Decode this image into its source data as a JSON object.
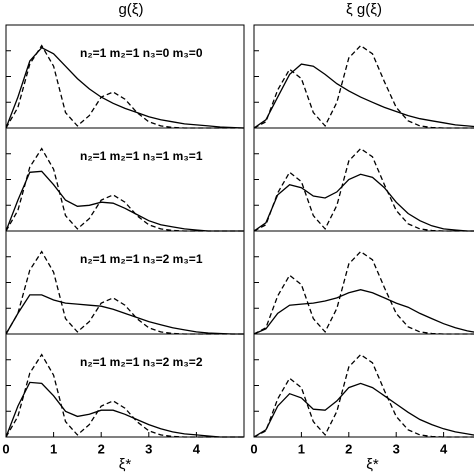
{
  "chart_data": [
    {
      "type": "line",
      "title": "g(ξ)",
      "annotation": "n₂=1 m₂=1 n₃=0 m₃=0",
      "x": [
        0,
        0.25,
        0.5,
        0.75,
        1,
        1.25,
        1.5,
        1.75,
        2,
        2.25,
        2.5,
        2.75,
        3,
        3.25,
        3.5,
        3.75,
        4,
        4.25,
        4.5,
        4.75,
        5
      ],
      "xlim": [
        0,
        5
      ],
      "ylim": [
        0,
        1
      ],
      "yticks": [
        {
          "value": 0.25,
          "label": null
        },
        {
          "value": 0.5,
          "label": null
        },
        {
          "value": 0.75,
          "label": null
        }
      ],
      "series": [
        {
          "color": "#000000",
          "style": "solid",
          "values": [
            0,
            0.3,
            0.65,
            0.78,
            0.72,
            0.6,
            0.48,
            0.38,
            0.3,
            0.24,
            0.19,
            0.15,
            0.11,
            0.08,
            0.06,
            0.04,
            0.03,
            0.02,
            0.01,
            0.005,
            0
          ]
        },
        {
          "color": "#000000",
          "style": "dashed",
          "values": [
            0,
            0.2,
            0.62,
            0.8,
            0.6,
            0.15,
            0.02,
            0.12,
            0.3,
            0.35,
            0.28,
            0.15,
            0.06,
            0.02,
            0.005,
            0,
            0,
            0,
            0,
            0,
            0
          ]
        }
      ]
    },
    {
      "type": "line",
      "title": "ξ g(ξ)",
      "x": [
        0,
        0.25,
        0.5,
        0.75,
        1,
        1.25,
        1.5,
        1.75,
        2,
        2.25,
        2.5,
        2.75,
        3,
        3.25,
        3.5,
        3.75,
        4,
        4.25,
        4.5,
        4.75,
        5
      ],
      "xlim": [
        0,
        5
      ],
      "ylim": [
        0,
        1
      ],
      "yticks": [
        {
          "value": 0.25,
          "label": null
        },
        {
          "value": 0.5,
          "label": null
        },
        {
          "value": 0.75,
          "label": null
        }
      ],
      "series": [
        {
          "color": "#000000",
          "style": "solid",
          "values": [
            0,
            0.08,
            0.3,
            0.52,
            0.62,
            0.6,
            0.52,
            0.43,
            0.36,
            0.3,
            0.25,
            0.2,
            0.16,
            0.12,
            0.09,
            0.07,
            0.05,
            0.03,
            0.02,
            0.01,
            0
          ]
        },
        {
          "color": "#000000",
          "style": "dashed",
          "values": [
            0,
            0.06,
            0.37,
            0.57,
            0.48,
            0.15,
            0.02,
            0.25,
            0.68,
            0.8,
            0.72,
            0.45,
            0.2,
            0.07,
            0.02,
            0.005,
            0,
            0,
            0,
            0,
            0
          ]
        }
      ]
    },
    {
      "type": "line",
      "annotation": "n₂=1 m₂=1 n₃=1 m₃=1",
      "x": [
        0,
        0.25,
        0.5,
        0.75,
        1,
        1.25,
        1.5,
        1.75,
        2,
        2.25,
        2.5,
        2.75,
        3,
        3.25,
        3.5,
        3.75,
        4,
        4.25,
        4.5,
        4.75,
        5
      ],
      "xlim": [
        0,
        5
      ],
      "ylim": [
        0,
        1
      ],
      "yticks": [
        {
          "value": 0.25,
          "label": null
        },
        {
          "value": 0.5,
          "label": null
        },
        {
          "value": 0.75,
          "label": null
        }
      ],
      "series": [
        {
          "color": "#000000",
          "style": "solid",
          "values": [
            0,
            0.3,
            0.57,
            0.58,
            0.45,
            0.3,
            0.24,
            0.25,
            0.28,
            0.27,
            0.22,
            0.16,
            0.1,
            0.06,
            0.04,
            0.02,
            0.01,
            0,
            0,
            0,
            0
          ]
        },
        {
          "color": "#000000",
          "style": "dashed",
          "values": [
            0,
            0.2,
            0.62,
            0.8,
            0.6,
            0.15,
            0.02,
            0.12,
            0.3,
            0.35,
            0.28,
            0.15,
            0.06,
            0.02,
            0.005,
            0,
            0,
            0,
            0,
            0,
            0
          ]
        }
      ]
    },
    {
      "type": "line",
      "x": [
        0,
        0.25,
        0.5,
        0.75,
        1,
        1.25,
        1.5,
        1.75,
        2,
        2.25,
        2.5,
        2.75,
        3,
        3.25,
        3.5,
        3.75,
        4,
        4.25,
        4.5,
        4.75,
        5
      ],
      "xlim": [
        0,
        5
      ],
      "ylim": [
        0,
        1
      ],
      "yticks": [
        {
          "value": 0.25,
          "label": null
        },
        {
          "value": 0.5,
          "label": null
        },
        {
          "value": 0.75,
          "label": null
        }
      ],
      "series": [
        {
          "color": "#000000",
          "style": "solid",
          "values": [
            0,
            0.08,
            0.35,
            0.45,
            0.42,
            0.34,
            0.32,
            0.38,
            0.5,
            0.55,
            0.52,
            0.42,
            0.28,
            0.17,
            0.1,
            0.05,
            0.02,
            0.01,
            0,
            0,
            0
          ]
        },
        {
          "color": "#000000",
          "style": "dashed",
          "values": [
            0,
            0.06,
            0.37,
            0.57,
            0.48,
            0.15,
            0.02,
            0.25,
            0.68,
            0.8,
            0.72,
            0.45,
            0.2,
            0.07,
            0.02,
            0.005,
            0,
            0,
            0,
            0,
            0
          ]
        }
      ]
    },
    {
      "type": "line",
      "annotation": "n₂=1 m₂=1 n₃=2 m₃=1",
      "x": [
        0,
        0.25,
        0.5,
        0.75,
        1,
        1.25,
        1.5,
        1.75,
        2,
        2.25,
        2.5,
        2.75,
        3,
        3.25,
        3.5,
        3.75,
        4,
        4.25,
        4.5,
        4.75,
        5
      ],
      "xlim": [
        0,
        5
      ],
      "ylim": [
        0,
        1
      ],
      "yticks": [
        {
          "value": 0.25,
          "label": null
        },
        {
          "value": 0.5,
          "label": null
        },
        {
          "value": 0.75,
          "label": null
        }
      ],
      "series": [
        {
          "color": "#000000",
          "style": "solid",
          "values": [
            0,
            0.2,
            0.38,
            0.38,
            0.33,
            0.3,
            0.29,
            0.28,
            0.27,
            0.24,
            0.2,
            0.16,
            0.12,
            0.09,
            0.06,
            0.04,
            0.02,
            0.01,
            0.005,
            0,
            0
          ]
        },
        {
          "color": "#000000",
          "style": "dashed",
          "values": [
            0,
            0.2,
            0.62,
            0.8,
            0.6,
            0.15,
            0.02,
            0.12,
            0.3,
            0.35,
            0.28,
            0.15,
            0.06,
            0.02,
            0.005,
            0,
            0,
            0,
            0,
            0,
            0
          ]
        }
      ]
    },
    {
      "type": "line",
      "x": [
        0,
        0.25,
        0.5,
        0.75,
        1,
        1.25,
        1.5,
        1.75,
        2,
        2.25,
        2.5,
        2.75,
        3,
        3.25,
        3.5,
        3.75,
        4,
        4.25,
        4.5,
        4.75,
        5
      ],
      "xlim": [
        0,
        5
      ],
      "ylim": [
        0,
        1
      ],
      "yticks": [
        {
          "value": 0.25,
          "label": null
        },
        {
          "value": 0.5,
          "label": null
        },
        {
          "value": 0.75,
          "label": null
        }
      ],
      "series": [
        {
          "color": "#000000",
          "style": "solid",
          "values": [
            0,
            0.05,
            0.2,
            0.28,
            0.29,
            0.3,
            0.32,
            0.35,
            0.4,
            0.43,
            0.4,
            0.35,
            0.3,
            0.26,
            0.2,
            0.15,
            0.1,
            0.06,
            0.03,
            0.01,
            0
          ]
        },
        {
          "color": "#000000",
          "style": "dashed",
          "values": [
            0,
            0.06,
            0.37,
            0.57,
            0.48,
            0.15,
            0.02,
            0.25,
            0.68,
            0.8,
            0.72,
            0.45,
            0.2,
            0.07,
            0.02,
            0.005,
            0,
            0,
            0,
            0,
            0
          ]
        }
      ]
    },
    {
      "type": "line",
      "annotation": "n₂=1 m₂=1 n₃=2 m₃=2",
      "xlabel": "ξ*",
      "x": [
        0,
        0.25,
        0.5,
        0.75,
        1,
        1.25,
        1.5,
        1.75,
        2,
        2.25,
        2.5,
        2.75,
        3,
        3.25,
        3.5,
        3.75,
        4,
        4.25,
        4.5,
        4.75,
        5
      ],
      "xlim": [
        0,
        5
      ],
      "ylim": [
        0,
        1
      ],
      "xticks": [
        0,
        1,
        2,
        3,
        4
      ],
      "yticks": [
        {
          "value": 0.25,
          "label": null
        },
        {
          "value": 0.5,
          "label": null
        },
        {
          "value": 0.75,
          "label": null
        }
      ],
      "series": [
        {
          "color": "#000000",
          "style": "solid",
          "values": [
            0,
            0.3,
            0.53,
            0.52,
            0.4,
            0.25,
            0.2,
            0.22,
            0.26,
            0.26,
            0.22,
            0.17,
            0.12,
            0.08,
            0.05,
            0.03,
            0.02,
            0.01,
            0,
            0,
            0
          ]
        },
        {
          "color": "#000000",
          "style": "dashed",
          "values": [
            0,
            0.2,
            0.62,
            0.8,
            0.6,
            0.15,
            0.02,
            0.12,
            0.3,
            0.35,
            0.28,
            0.15,
            0.06,
            0.02,
            0.005,
            0,
            0,
            0,
            0,
            0,
            0
          ]
        }
      ]
    },
    {
      "type": "line",
      "xlabel": "ξ*",
      "x": [
        0,
        0.25,
        0.5,
        0.75,
        1,
        1.25,
        1.5,
        1.75,
        2,
        2.25,
        2.5,
        2.75,
        3,
        3.25,
        3.5,
        3.75,
        4,
        4.25,
        4.5,
        4.75,
        5
      ],
      "xlim": [
        0,
        5
      ],
      "ylim": [
        0,
        1
      ],
      "xticks": [
        0,
        1,
        2,
        3,
        4
      ],
      "yticks": [
        {
          "value": 0.25,
          "label": null
        },
        {
          "value": 0.5,
          "label": null
        },
        {
          "value": 0.75,
          "label": null
        }
      ],
      "series": [
        {
          "color": "#000000",
          "style": "solid",
          "values": [
            0,
            0.07,
            0.3,
            0.42,
            0.38,
            0.27,
            0.26,
            0.35,
            0.48,
            0.52,
            0.48,
            0.4,
            0.32,
            0.24,
            0.17,
            0.12,
            0.08,
            0.05,
            0.03,
            0.01,
            0
          ]
        },
        {
          "color": "#000000",
          "style": "dashed",
          "values": [
            0,
            0.06,
            0.37,
            0.57,
            0.48,
            0.15,
            0.02,
            0.25,
            0.68,
            0.8,
            0.72,
            0.45,
            0.2,
            0.07,
            0.02,
            0.005,
            0,
            0,
            0,
            0,
            0
          ]
        }
      ]
    }
  ]
}
